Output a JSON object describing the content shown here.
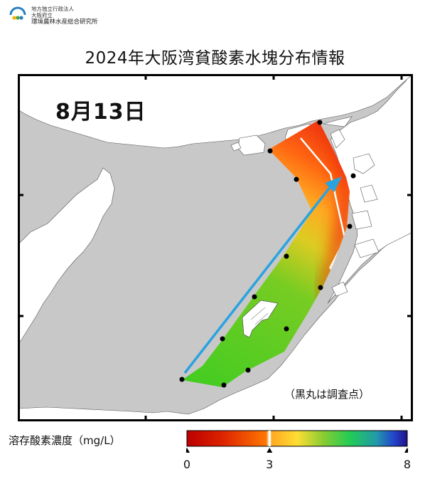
{
  "org": {
    "line1": "地方独立行政法人",
    "line2": "大阪府立",
    "line3": "環境農林水産総合研究所"
  },
  "title": "2024年大阪湾貧酸素水塊分布情報",
  "date_label": "8月13日",
  "note": "（黒丸は調査点）",
  "legend": {
    "label": "溶存酸素濃度（mg/L）",
    "min_label": "0",
    "mid_label": "3",
    "max_label": "8",
    "min": 0,
    "threshold": 3,
    "max": 8,
    "colors": [
      "#cc0000",
      "#ff6600",
      "#ffcc33",
      "#66cc33",
      "#22cc66",
      "#2244cc",
      "#221188"
    ]
  },
  "map": {
    "land_color": "#ffffff",
    "sea_color": "#c8c8c8",
    "arrow_color": "#29a3e0",
    "station_color": "#000000"
  }
}
